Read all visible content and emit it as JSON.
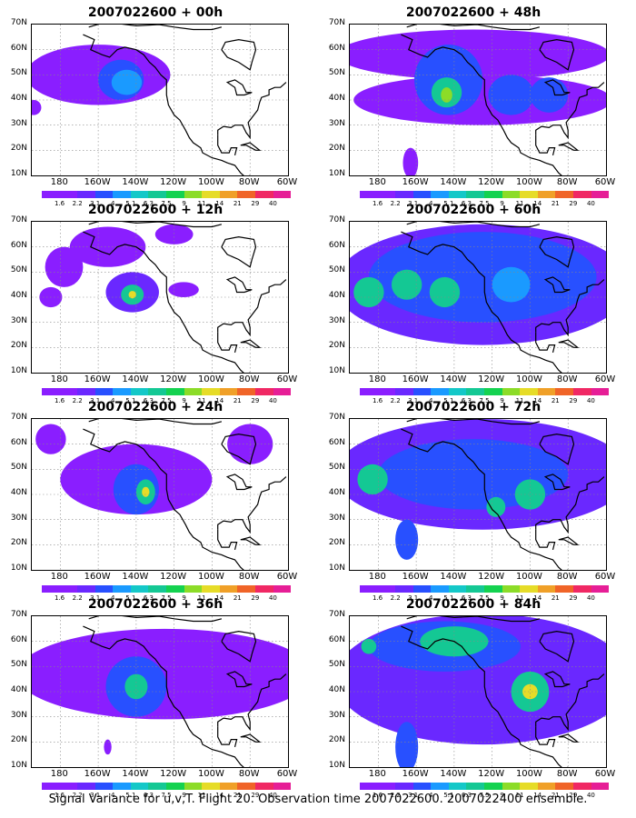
{
  "caption": "Signal Variance for u,v,T. Flight 20. Observation time 2007022600. 2007022400 ensemble.",
  "lat_labels": [
    "70N",
    "60N",
    "50N",
    "40N",
    "30N",
    "20N",
    "10N"
  ],
  "lon_labels": [
    "180",
    "160W",
    "140W",
    "120W",
    "100W",
    "80W",
    "60W"
  ],
  "colorbar": {
    "labels": [
      "1.6",
      "2.2",
      "3.1",
      "4",
      "5.1",
      "6.3",
      "7.5",
      "9",
      "11",
      "14",
      "21",
      "29",
      "40"
    ],
    "colors": [
      "#8a1eff",
      "#8a1eff",
      "#6a28ff",
      "#2850ff",
      "#1a9aff",
      "#14c8c8",
      "#14c894",
      "#14d250",
      "#8cdc28",
      "#e6dc28",
      "#f0a028",
      "#f06428",
      "#f02864",
      "#e61e96"
    ]
  },
  "panels": [
    {
      "title": "2007022600 + 00h",
      "blobs": [
        {
          "lon": -160,
          "lat": 50,
          "rx": 38,
          "ry": 12,
          "level": 1
        },
        {
          "lon": -148,
          "lat": 48,
          "rx": 12,
          "ry": 8,
          "level": 3
        },
        {
          "lon": -145,
          "lat": 47,
          "rx": 8,
          "ry": 5,
          "level": 4
        },
        {
          "lon": -194,
          "lat": 37,
          "rx": 4,
          "ry": 3,
          "level": 1
        }
      ]
    },
    {
      "title": "2007022600 + 48h",
      "blobs": [
        {
          "lon": -130,
          "lat": 58,
          "rx": 72,
          "ry": 10,
          "level": 1
        },
        {
          "lon": -125,
          "lat": 40,
          "rx": 68,
          "ry": 10,
          "level": 1
        },
        {
          "lon": -143,
          "lat": 48,
          "rx": 18,
          "ry": 14,
          "level": 3
        },
        {
          "lon": -144,
          "lat": 43,
          "rx": 8,
          "ry": 6,
          "level": 5
        },
        {
          "lon": -144,
          "lat": 42,
          "rx": 3,
          "ry": 3,
          "level": 6
        },
        {
          "lon": -110,
          "lat": 42,
          "rx": 12,
          "ry": 8,
          "level": 3
        },
        {
          "lon": -90,
          "lat": 42,
          "rx": 10,
          "ry": 7,
          "level": 3
        },
        {
          "lon": -163,
          "lat": 15,
          "rx": 4,
          "ry": 6,
          "level": 1
        }
      ]
    },
    {
      "title": "2007022600 + 12h",
      "blobs": [
        {
          "lon": -155,
          "lat": 60,
          "rx": 20,
          "ry": 8,
          "level": 1
        },
        {
          "lon": -178,
          "lat": 52,
          "rx": 10,
          "ry": 8,
          "level": 1
        },
        {
          "lon": -185,
          "lat": 40,
          "rx": 6,
          "ry": 4,
          "level": 1
        },
        {
          "lon": -142,
          "lat": 42,
          "rx": 14,
          "ry": 8,
          "level": 2
        },
        {
          "lon": -142,
          "lat": 41,
          "rx": 6,
          "ry": 4,
          "level": 5
        },
        {
          "lon": -142,
          "lat": 41,
          "rx": 2,
          "ry": 1.5,
          "level": 7
        },
        {
          "lon": -115,
          "lat": 43,
          "rx": 8,
          "ry": 3,
          "level": 1
        },
        {
          "lon": -120,
          "lat": 65,
          "rx": 10,
          "ry": 4,
          "level": 1
        }
      ]
    },
    {
      "title": "2007022600 + 60h",
      "blobs": [
        {
          "lon": -125,
          "lat": 45,
          "rx": 78,
          "ry": 24,
          "level": 2
        },
        {
          "lon": -125,
          "lat": 48,
          "rx": 60,
          "ry": 18,
          "level": 3
        },
        {
          "lon": -185,
          "lat": 42,
          "rx": 8,
          "ry": 6,
          "level": 5
        },
        {
          "lon": -165,
          "lat": 45,
          "rx": 8,
          "ry": 6,
          "level": 5
        },
        {
          "lon": -145,
          "lat": 42,
          "rx": 8,
          "ry": 6,
          "level": 5
        },
        {
          "lon": -110,
          "lat": 45,
          "rx": 10,
          "ry": 7,
          "level": 4
        }
      ]
    },
    {
      "title": "2007022600 + 24h",
      "blobs": [
        {
          "lon": -140,
          "lat": 46,
          "rx": 40,
          "ry": 14,
          "level": 1
        },
        {
          "lon": -185,
          "lat": 62,
          "rx": 8,
          "ry": 6,
          "level": 1
        },
        {
          "lon": -80,
          "lat": 60,
          "rx": 12,
          "ry": 8,
          "level": 1
        },
        {
          "lon": -140,
          "lat": 42,
          "rx": 12,
          "ry": 10,
          "level": 3
        },
        {
          "lon": -135,
          "lat": 41,
          "rx": 5,
          "ry": 5,
          "level": 5
        },
        {
          "lon": -135,
          "lat": 41,
          "rx": 2,
          "ry": 2,
          "level": 7
        }
      ]
    },
    {
      "title": "2007022600 + 72h",
      "blobs": [
        {
          "lon": -125,
          "lat": 48,
          "rx": 78,
          "ry": 22,
          "level": 2
        },
        {
          "lon": -130,
          "lat": 48,
          "rx": 50,
          "ry": 14,
          "level": 3
        },
        {
          "lon": -165,
          "lat": 22,
          "rx": 6,
          "ry": 8,
          "level": 3
        },
        {
          "lon": -183,
          "lat": 46,
          "rx": 8,
          "ry": 6,
          "level": 5
        },
        {
          "lon": -100,
          "lat": 40,
          "rx": 8,
          "ry": 6,
          "level": 5
        },
        {
          "lon": -118,
          "lat": 35,
          "rx": 5,
          "ry": 4,
          "level": 5
        }
      ]
    },
    {
      "title": "2007022600 + 36h",
      "blobs": [
        {
          "lon": -125,
          "lat": 47,
          "rx": 78,
          "ry": 18,
          "level": 1
        },
        {
          "lon": -140,
          "lat": 42,
          "rx": 16,
          "ry": 12,
          "level": 3
        },
        {
          "lon": -140,
          "lat": 42,
          "rx": 6,
          "ry": 5,
          "level": 5
        },
        {
          "lon": -155,
          "lat": 18,
          "rx": 2,
          "ry": 3,
          "level": 1
        }
      ]
    },
    {
      "title": "2007022600 + 84h",
      "blobs": [
        {
          "lon": -125,
          "lat": 45,
          "rx": 78,
          "ry": 26,
          "level": 2
        },
        {
          "lon": -145,
          "lat": 58,
          "rx": 40,
          "ry": 10,
          "level": 3
        },
        {
          "lon": -140,
          "lat": 60,
          "rx": 18,
          "ry": 6,
          "level": 5
        },
        {
          "lon": -165,
          "lat": 18,
          "rx": 6,
          "ry": 10,
          "level": 3
        },
        {
          "lon": -100,
          "lat": 40,
          "rx": 10,
          "ry": 8,
          "level": 5
        },
        {
          "lon": -100,
          "lat": 40,
          "rx": 4,
          "ry": 3,
          "level": 7
        },
        {
          "lon": -185,
          "lat": 58,
          "rx": 4,
          "ry": 3,
          "level": 5
        }
      ]
    }
  ]
}
